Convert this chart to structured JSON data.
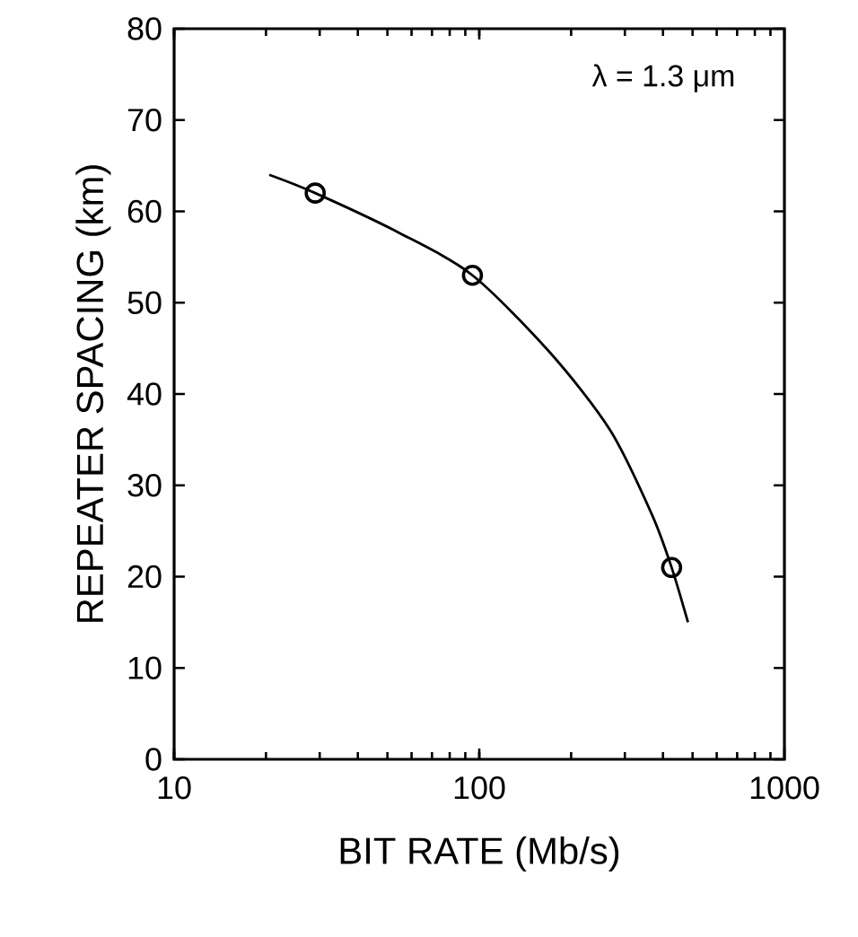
{
  "chart_data": {
    "type": "scatter",
    "xlabel": "BIT RATE (Mb/s)",
    "ylabel": "REPEATER SPACING (km)",
    "annotations": [
      "λ = 1.3 μm"
    ],
    "log": "x",
    "xlim": [
      10,
      1000
    ],
    "ylim": [
      0,
      80
    ],
    "xticks": [
      10,
      100,
      1000
    ],
    "yticks": [
      0,
      10,
      20,
      30,
      40,
      50,
      60,
      70,
      80
    ],
    "grid": false,
    "series": [
      {
        "type": "line",
        "marker": "none",
        "line_style": "solid",
        "color": "#000000",
        "x": [
          20.5,
          29,
          55,
          95,
          171,
          269,
          368,
          427,
          483
        ],
        "values": [
          64,
          62,
          57.6,
          53,
          44.5,
          36,
          26.8,
          21,
          15
        ]
      },
      {
        "marker": "circle",
        "color": "#000000",
        "x": [
          29,
          95,
          427
        ],
        "values": [
          62,
          53,
          21
        ]
      }
    ]
  }
}
